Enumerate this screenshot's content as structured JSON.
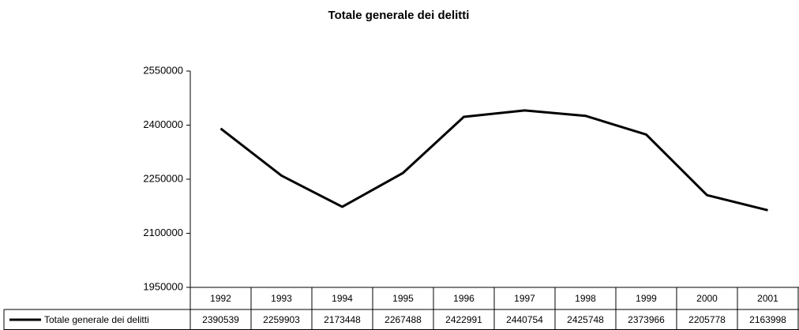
{
  "chart_data": {
    "type": "line",
    "title": "Totale generale dei delitti",
    "categories": [
      "1992",
      "1993",
      "1994",
      "1995",
      "1996",
      "1997",
      "1998",
      "1999",
      "2000",
      "2001"
    ],
    "series": [
      {
        "name": "Totale generale dei delitti",
        "color": "#000000",
        "values": [
          2390539,
          2259903,
          2173448,
          2267488,
          2422991,
          2440754,
          2425748,
          2373966,
          2205778,
          2163998
        ]
      }
    ],
    "ylim": [
      1950000,
      2550000
    ],
    "yticks": [
      1950000,
      2100000,
      2250000,
      2400000,
      2550000
    ],
    "grid": false
  }
}
